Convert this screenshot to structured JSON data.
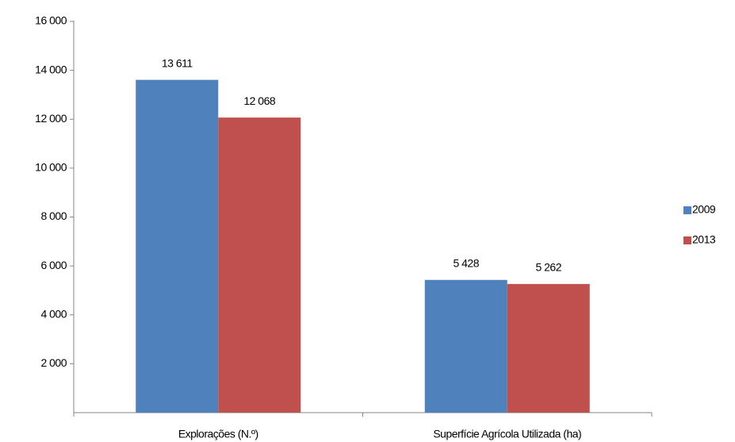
{
  "chart_data": {
    "type": "bar",
    "categories": [
      "Explorações (N.º)",
      "Superfície Agrícola Utilizada (ha)"
    ],
    "series": [
      {
        "name": "2009",
        "color": "#4f81bd",
        "values": [
          13611,
          5428
        ],
        "value_labels": [
          "13 611",
          "5 428"
        ]
      },
      {
        "name": "2013",
        "color": "#c0504d",
        "values": [
          12068,
          5262
        ],
        "value_labels": [
          "12 068",
          "5 262"
        ]
      }
    ],
    "ylim": [
      0,
      16000
    ],
    "yticks": [
      {
        "value": 2000,
        "label": "2 000"
      },
      {
        "value": 4000,
        "label": "4 000"
      },
      {
        "value": 6000,
        "label": "6 000"
      },
      {
        "value": 8000,
        "label": "8 000"
      },
      {
        "value": 10000,
        "label": "10 000"
      },
      {
        "value": 12000,
        "label": "12 000"
      },
      {
        "value": 14000,
        "label": "14 000"
      },
      {
        "value": 16000,
        "label": "16 000"
      }
    ],
    "grid": false,
    "legend": "right"
  }
}
